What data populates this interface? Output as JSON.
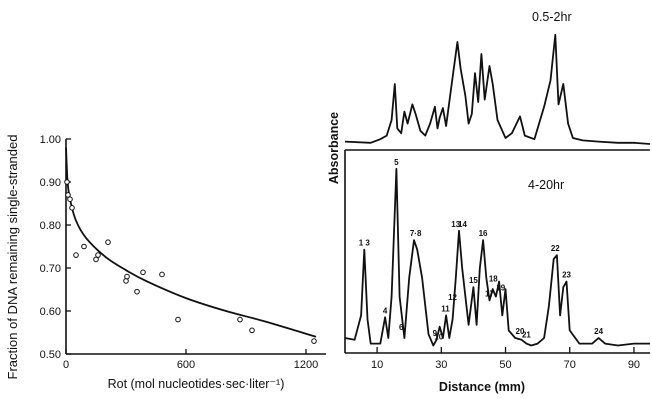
{
  "chart_data": [
    {
      "type": "scatter",
      "xlabel": "Rot (mol nucleotides·sec·liter⁻¹)",
      "ylabel": "Fraction of DNA remaining single-stranded",
      "xlim": [
        0,
        1300
      ],
      "ylim": [
        0.5,
        1.0
      ],
      "x_ticks": [
        "0",
        "600",
        "1200"
      ],
      "y_ticks": [
        "0.50",
        "0.60",
        "0.70",
        "0.80",
        "0.90",
        "1.00"
      ],
      "points": [
        {
          "x": 5,
          "y": 0.9
        },
        {
          "x": 10,
          "y": 0.87
        },
        {
          "x": 20,
          "y": 0.86
        },
        {
          "x": 30,
          "y": 0.84
        },
        {
          "x": 50,
          "y": 0.73
        },
        {
          "x": 90,
          "y": 0.75
        },
        {
          "x": 150,
          "y": 0.72
        },
        {
          "x": 160,
          "y": 0.73
        },
        {
          "x": 210,
          "y": 0.76
        },
        {
          "x": 300,
          "y": 0.67
        },
        {
          "x": 305,
          "y": 0.68
        },
        {
          "x": 355,
          "y": 0.645
        },
        {
          "x": 385,
          "y": 0.69
        },
        {
          "x": 480,
          "y": 0.685
        },
        {
          "x": 560,
          "y": 0.58
        },
        {
          "x": 870,
          "y": 0.58
        },
        {
          "x": 930,
          "y": 0.555
        },
        {
          "x": 1240,
          "y": 0.53
        }
      ],
      "fit_curve": [
        {
          "x": 0,
          "y": 0.98
        },
        {
          "x": 8,
          "y": 0.9
        },
        {
          "x": 20,
          "y": 0.86
        },
        {
          "x": 50,
          "y": 0.81
        },
        {
          "x": 100,
          "y": 0.77
        },
        {
          "x": 200,
          "y": 0.725
        },
        {
          "x": 300,
          "y": 0.695
        },
        {
          "x": 400,
          "y": 0.67
        },
        {
          "x": 600,
          "y": 0.63
        },
        {
          "x": 800,
          "y": 0.6
        },
        {
          "x": 1000,
          "y": 0.575
        },
        {
          "x": 1250,
          "y": 0.54
        }
      ]
    },
    {
      "type": "line",
      "xlabel": "Distance (mm)",
      "ylabel": "Absorbance",
      "xlim": [
        0,
        95
      ],
      "x_ticks": [
        "10",
        "30",
        "50",
        "70",
        "90"
      ],
      "panels": [
        {
          "name": "0.5-2hr",
          "series": [
            [
              0,
              0.07
            ],
            [
              8,
              0.06
            ],
            [
              11,
              0.09
            ],
            [
              13,
              0.12
            ],
            [
              14.5,
              0.25
            ],
            [
              15.5,
              0.55
            ],
            [
              16.3,
              0.18
            ],
            [
              17.5,
              0.14
            ],
            [
              18.5,
              0.32
            ],
            [
              19.5,
              0.22
            ],
            [
              21,
              0.38
            ],
            [
              22,
              0.3
            ],
            [
              23.5,
              0.16
            ],
            [
              25,
              0.12
            ],
            [
              26.5,
              0.22
            ],
            [
              28,
              0.36
            ],
            [
              28.8,
              0.18
            ],
            [
              29.5,
              0.27
            ],
            [
              30.5,
              0.35
            ],
            [
              31.5,
              0.2
            ],
            [
              33,
              0.5
            ],
            [
              35,
              0.9
            ],
            [
              36,
              0.68
            ],
            [
              37.5,
              0.45
            ],
            [
              38.5,
              0.22
            ],
            [
              39.5,
              0.3
            ],
            [
              40.5,
              0.64
            ],
            [
              41.5,
              0.4
            ],
            [
              42.5,
              0.8
            ],
            [
              43.5,
              0.42
            ],
            [
              45,
              0.7
            ],
            [
              46,
              0.55
            ],
            [
              47.5,
              0.25
            ],
            [
              50,
              0.1
            ],
            [
              52,
              0.14
            ],
            [
              54.5,
              0.28
            ],
            [
              56,
              0.12
            ],
            [
              59,
              0.09
            ],
            [
              62,
              0.36
            ],
            [
              64,
              0.58
            ],
            [
              65.5,
              0.96
            ],
            [
              66.5,
              0.38
            ],
            [
              68,
              0.55
            ],
            [
              69.5,
              0.22
            ],
            [
              71,
              0.1
            ],
            [
              74,
              0.08
            ],
            [
              79,
              0.07
            ],
            [
              85,
              0.06
            ],
            [
              90,
              0.06
            ],
            [
              95,
              0.05
            ]
          ]
        },
        {
          "name": "4-20hr",
          "series": [
            [
              0,
              0.08
            ],
            [
              3,
              0.07
            ],
            [
              5,
              0.2
            ],
            [
              6,
              0.55
            ],
            [
              7,
              0.18
            ],
            [
              8,
              0.05
            ],
            [
              10,
              0.05
            ],
            [
              11,
              0.05
            ],
            [
              12.5,
              0.19
            ],
            [
              13.5,
              0.08
            ],
            [
              14.5,
              0.3
            ],
            [
              16,
              0.98
            ],
            [
              17,
              0.3
            ],
            [
              18.5,
              0.08
            ],
            [
              20,
              0.4
            ],
            [
              21.5,
              0.6
            ],
            [
              22.5,
              0.55
            ],
            [
              24,
              0.4
            ],
            [
              26,
              0.1
            ],
            [
              27.5,
              0.04
            ],
            [
              28.5,
              0.07
            ],
            [
              29.5,
              0.14
            ],
            [
              30.5,
              0.08
            ],
            [
              31.5,
              0.2
            ],
            [
              32.5,
              0.08
            ],
            [
              33.5,
              0.18
            ],
            [
              34.5,
              0.4
            ],
            [
              35.5,
              0.65
            ],
            [
              36.5,
              0.45
            ],
            [
              38.5,
              0.15
            ],
            [
              40,
              0.35
            ],
            [
              41,
              0.15
            ],
            [
              42,
              0.45
            ],
            [
              43,
              0.6
            ],
            [
              44,
              0.4
            ],
            [
              45,
              0.28
            ],
            [
              46,
              0.34
            ],
            [
              47,
              0.3
            ],
            [
              48,
              0.38
            ],
            [
              49,
              0.2
            ],
            [
              50,
              0.34
            ],
            [
              51,
              0.12
            ],
            [
              53,
              0.08
            ],
            [
              55,
              0.07
            ],
            [
              56.5,
              0.05
            ],
            [
              58,
              0.04
            ],
            [
              60,
              0.05
            ],
            [
              62,
              0.08
            ],
            [
              63.5,
              0.25
            ],
            [
              65,
              0.5
            ],
            [
              66,
              0.52
            ],
            [
              67,
              0.2
            ],
            [
              68,
              0.35
            ],
            [
              69,
              0.38
            ],
            [
              70,
              0.12
            ],
            [
              73,
              0.05
            ],
            [
              77,
              0.05
            ],
            [
              79,
              0.08
            ],
            [
              81,
              0.05
            ],
            [
              85,
              0.04
            ],
            [
              90,
              0.05
            ],
            [
              95,
              0.05
            ]
          ]
        }
      ],
      "peak_labels": [
        {
          "text": "1 3",
          "x": 6,
          "y": 0.55
        },
        {
          "text": "5",
          "x": 16,
          "y": 0.98
        },
        {
          "text": "7·8",
          "x": 22,
          "y": 0.6
        },
        {
          "text": "4",
          "x": 12.5,
          "y": 0.19
        },
        {
          "text": "6",
          "x": 17.5,
          "y": 0.1
        },
        {
          "text": "9",
          "x": 28,
          "y": 0.07
        },
        {
          "text": "10",
          "x": 29.2,
          "y": 0.05
        },
        {
          "text": "11",
          "x": 31.3,
          "y": 0.2
        },
        {
          "text": "12",
          "x": 33.5,
          "y": 0.26
        },
        {
          "text": "13",
          "x": 34.5,
          "y": 0.65
        },
        {
          "text": "14",
          "x": 36.6,
          "y": 0.65
        },
        {
          "text": "15",
          "x": 40,
          "y": 0.35
        },
        {
          "text": "16",
          "x": 43,
          "y": 0.6
        },
        {
          "text": "17",
          "x": 45,
          "y": 0.28
        },
        {
          "text": "18",
          "x": 46.2,
          "y": 0.36
        },
        {
          "text": "19",
          "x": 48.5,
          "y": 0.31
        },
        {
          "text": "20",
          "x": 54.5,
          "y": 0.08
        },
        {
          "text": "21",
          "x": 56.5,
          "y": 0.06
        },
        {
          "text": "22",
          "x": 65.5,
          "y": 0.52
        },
        {
          "text": "23",
          "x": 69,
          "y": 0.38
        },
        {
          "text": "24",
          "x": 79,
          "y": 0.08
        }
      ]
    }
  ]
}
